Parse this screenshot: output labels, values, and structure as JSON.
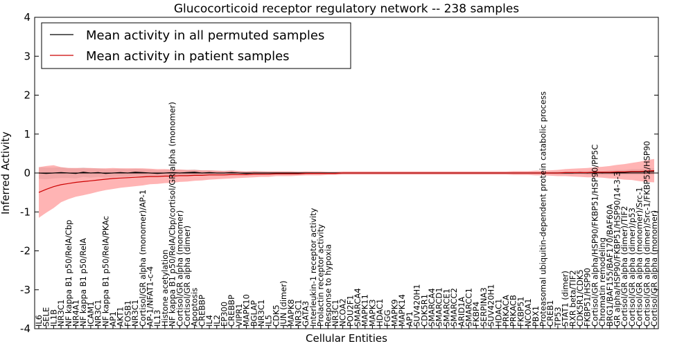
{
  "chart_data": {
    "type": "line",
    "title": "Glucocorticoid receptor regulatory network -- 238 samples",
    "xlabel": "Cellular Entities",
    "ylabel": "Inferred Activity",
    "ylim": [
      -4,
      4
    ],
    "yticks": [
      -4,
      -3,
      -2,
      -1,
      0,
      1,
      2,
      3,
      4
    ],
    "legend_position": "top-left",
    "categories": [
      "IL6",
      "SELE",
      "IL1B",
      "NR3C1",
      "NF kappa B1 p50/RelA/Cbp",
      "NR4A1",
      "NF kappa B1 p50/RelA",
      "ICAM1",
      "NR3C1",
      "NF kappa B1 p50/RelA/PKAc",
      "AP1",
      "AKT1",
      "FOSB1",
      "NR3C1",
      "Cortisol/GR alpha (monomer)/AP-1",
      "AP-1/NFAT1-c-4",
      "IL13",
      "Histone acetylation",
      "NF kappa B1 p50/RelA/Cbp/cortisol/GR alpha (monomer)",
      "Cortisol/GR alpha (monomer)",
      "Cortisol/GR alpha (dimer)",
      "Apoptosis",
      "CREBBP",
      "IL4",
      "IL2",
      "EP300",
      "CREBBP",
      "VIPR1",
      "MAPK10",
      "BGLAP",
      "NR3C1",
      "IL5",
      "CDK5",
      "JUN (dimer)",
      "MAPK8",
      "NR3C1",
      "GATA3",
      "Interleukin-1 receptor activity",
      "Prolactin receptor activity",
      "Response to hypoxia",
      "NR3C1",
      "NCOA2",
      "POU2F1",
      "SMARCA4",
      "MAPK11",
      "MAPK3",
      "HDAC1",
      "FGG",
      "MAPK9",
      "MAPK14",
      "AP1",
      "SUV420H1",
      "CDK5R1",
      "SMARCA4",
      "SMARCD1",
      "SMARCE1",
      "SMARCC2",
      "ARID1A",
      "SMARCC1",
      "FKBP4",
      "SERPINA3",
      "SUV420H1",
      "HDAC1",
      "PRKACA",
      "PRKACB",
      "FKBP51",
      "NCOA1",
      "PBX1",
      "Proteasomal ubiquitin-dependent protein catabolic process",
      "CREB1",
      "TP53",
      "STAT1 (dimer)",
      "RXR beta/TIF2",
      "CDK5R1/CDK5",
      "FKBP51/HSP90",
      "Cortisol/GR alpha/HSP90/FKBP51/HSP90/PP5C",
      "Chromatin remodeling",
      "BRG1/BAF155/BAF170/BAF60A",
      "GR alpha/HSP90/FKBP51/HSP90/14-3-3",
      "Cortisol/GR alpha (dimer)/TIF2",
      "Cortisol/GR alpha (dimer)/p53",
      "Cortisol/GR alpha (monomer)/Src-1",
      "Cortisol/GR alpha (dimer)/Src-1/FKBP52/HSP90",
      "Cortisol/GR alpha (monomer)"
    ],
    "series": [
      {
        "name": "Mean activity in all permuted samples",
        "color": "#000000",
        "band_color": "#bbbbbb",
        "values": [
          0.0,
          -0.01,
          0.0,
          0.01,
          0.0,
          -0.01,
          0.02,
          0.0,
          0.01,
          -0.01,
          0.0,
          0.01,
          0.0,
          0.02,
          0.01,
          0.0,
          -0.01,
          0.0,
          0.01,
          0.0,
          0.01,
          0.02,
          0.0,
          0.01,
          0.0,
          0.0,
          0.01,
          0.0,
          -0.01,
          0.0,
          0.0,
          0.0,
          0.0,
          0.0,
          0.0,
          0.0,
          0.0,
          0.0,
          0.0,
          0.0,
          0.0,
          0.0,
          0.0,
          0.0,
          0.0,
          0.0,
          0.0,
          0.0,
          0.0,
          0.0,
          0.0,
          0.0,
          0.0,
          0.0,
          0.0,
          0.0,
          0.0,
          0.0,
          0.0,
          0.0,
          0.0,
          0.0,
          0.0,
          0.0,
          0.0,
          0.0,
          0.0,
          0.0,
          0.0,
          0.0,
          0.0,
          0.0,
          0.0,
          0.01,
          0.0,
          0.01,
          0.0,
          0.01,
          0.02,
          0.02,
          0.03,
          0.03,
          0.04,
          0.04
        ],
        "band": [
          0.15,
          0.15,
          0.14,
          0.14,
          0.13,
          0.13,
          0.12,
          0.12,
          0.11,
          0.11,
          0.1,
          0.1,
          0.1,
          0.09,
          0.09,
          0.09,
          0.08,
          0.08,
          0.08,
          0.08,
          0.07,
          0.07,
          0.07,
          0.06,
          0.06,
          0.06,
          0.06,
          0.05,
          0.05,
          0.05,
          0.05,
          0.04,
          0.04,
          0.04,
          0.04,
          0.04,
          0.04,
          0.03,
          0.03,
          0.03,
          0.03,
          0.03,
          0.03,
          0.03,
          0.03,
          0.03,
          0.03,
          0.03,
          0.03,
          0.03,
          0.03,
          0.03,
          0.03,
          0.03,
          0.03,
          0.03,
          0.03,
          0.03,
          0.03,
          0.03,
          0.03,
          0.03,
          0.03,
          0.03,
          0.03,
          0.03,
          0.03,
          0.03,
          0.03,
          0.03,
          0.04,
          0.04,
          0.04,
          0.04,
          0.05,
          0.05,
          0.05,
          0.06,
          0.06,
          0.06,
          0.07,
          0.07,
          0.08,
          0.08
        ]
      },
      {
        "name": "Mean activity in patient samples",
        "color": "#cc0000",
        "band_color": "#ff7777",
        "values": [
          -0.5,
          -0.42,
          -0.35,
          -0.3,
          -0.27,
          -0.24,
          -0.22,
          -0.2,
          -0.18,
          -0.16,
          -0.14,
          -0.13,
          -0.12,
          -0.11,
          -0.1,
          -0.09,
          -0.09,
          -0.08,
          -0.08,
          -0.07,
          -0.07,
          -0.06,
          -0.06,
          -0.05,
          -0.05,
          -0.05,
          -0.04,
          -0.04,
          -0.04,
          -0.03,
          -0.03,
          -0.03,
          -0.02,
          -0.02,
          -0.02,
          -0.02,
          -0.01,
          -0.01,
          -0.01,
          -0.01,
          -0.01,
          0.0,
          0.0,
          0.0,
          0.0,
          0.0,
          0.0,
          0.0,
          0.0,
          0.0,
          0.0,
          0.0,
          0.0,
          0.0,
          0.0,
          0.0,
          0.0,
          0.0,
          0.0,
          0.0,
          0.0,
          0.0,
          0.0,
          0.0,
          0.0,
          0.0,
          0.0,
          0.0,
          0.0,
          0.0,
          0.0,
          0.01,
          0.01,
          0.01,
          0.01,
          0.02,
          0.02,
          0.02,
          0.03,
          0.03,
          0.04,
          0.04,
          0.05,
          0.06
        ],
        "band": [
          0.65,
          0.6,
          0.55,
          0.45,
          0.4,
          0.37,
          0.35,
          0.33,
          0.3,
          0.28,
          0.27,
          0.25,
          0.24,
          0.23,
          0.22,
          0.2,
          0.19,
          0.18,
          0.17,
          0.16,
          0.15,
          0.14,
          0.13,
          0.12,
          0.11,
          0.1,
          0.1,
          0.09,
          0.08,
          0.08,
          0.07,
          0.07,
          0.06,
          0.06,
          0.06,
          0.05,
          0.05,
          0.05,
          0.05,
          0.04,
          0.04,
          0.04,
          0.04,
          0.04,
          0.04,
          0.04,
          0.04,
          0.04,
          0.04,
          0.04,
          0.04,
          0.04,
          0.04,
          0.04,
          0.04,
          0.04,
          0.04,
          0.04,
          0.04,
          0.04,
          0.04,
          0.04,
          0.04,
          0.04,
          0.05,
          0.05,
          0.05,
          0.06,
          0.06,
          0.07,
          0.08,
          0.09,
          0.1,
          0.11,
          0.12,
          0.13,
          0.14,
          0.16,
          0.18,
          0.2,
          0.22,
          0.25,
          0.28,
          0.3
        ]
      }
    ]
  }
}
